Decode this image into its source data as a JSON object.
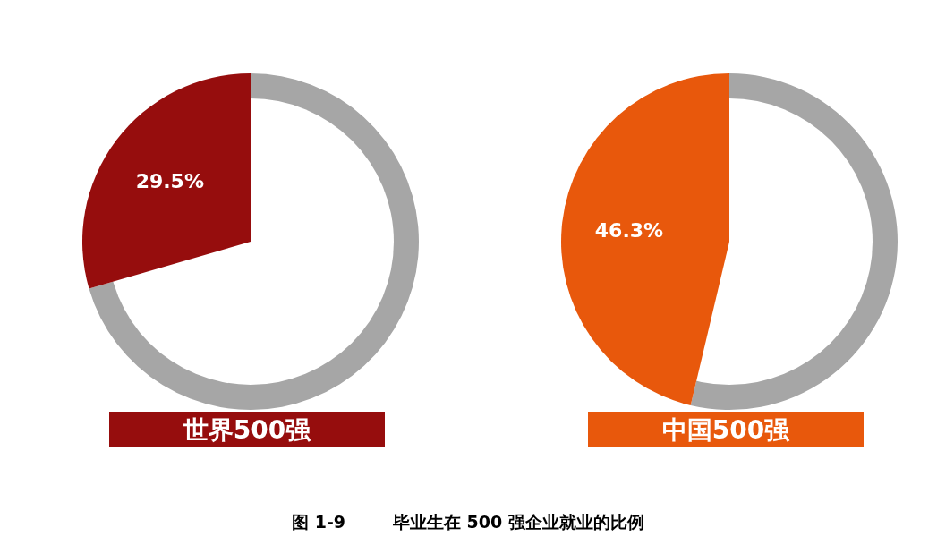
{
  "chart_data": [
    {
      "type": "pie",
      "title": "世界500强",
      "categories": [
        null,
        null
      ],
      "values": [
        29.5,
        70.5
      ],
      "colors": [
        "#960d0d",
        "#a6a6a6"
      ],
      "value_labels": [
        "29.5%",
        null
      ],
      "annotations": [
        "图 1-9        毕业生在 500 强企业就业的比例"
      ]
    },
    {
      "type": "pie",
      "title": "中国500强",
      "categories": [
        null,
        null
      ],
      "values": [
        46.3,
        53.7
      ],
      "colors": [
        "#e8580c",
        "#a6a6a6"
      ],
      "value_labels": [
        "46.3%",
        null
      ]
    }
  ]
}
